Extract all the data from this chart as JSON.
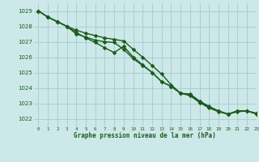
{
  "title": "Graphe pression niveau de la mer (hPa)",
  "background_color": "#cce8e8",
  "grid_color": "#aacfcf",
  "line_color": "#1a5c1a",
  "xlim": [
    -0.5,
    23
  ],
  "ylim": [
    1021.5,
    1029.5
  ],
  "yticks": [
    1022,
    1023,
    1024,
    1025,
    1026,
    1027,
    1028,
    1029
  ],
  "xticks": [
    0,
    1,
    2,
    3,
    4,
    5,
    6,
    7,
    8,
    9,
    10,
    11,
    12,
    13,
    14,
    15,
    16,
    17,
    18,
    19,
    20,
    21,
    22,
    23
  ],
  "line1_x": [
    0,
    1,
    2,
    3,
    4,
    5,
    6,
    7,
    8,
    9,
    10,
    11,
    12,
    13,
    14,
    15,
    16,
    17,
    18,
    19,
    20,
    21,
    22,
    23
  ],
  "line1_y": [
    1029.0,
    1028.6,
    1028.3,
    1028.0,
    1027.6,
    1027.25,
    1026.95,
    1026.6,
    1026.3,
    1026.7,
    1026.0,
    1025.5,
    1025.0,
    1024.4,
    1024.1,
    1023.65,
    1023.6,
    1023.15,
    1022.8,
    1022.5,
    1022.3,
    1022.5,
    1022.5,
    1022.3
  ],
  "line2_x": [
    0,
    1,
    2,
    3,
    4,
    5,
    6,
    7,
    8,
    9,
    10,
    11,
    12,
    13,
    14,
    15,
    16,
    17,
    18,
    19,
    20,
    21,
    22,
    23
  ],
  "line2_y": [
    1029.0,
    1028.6,
    1028.3,
    1028.0,
    1027.5,
    1027.3,
    1027.1,
    1027.0,
    1026.95,
    1026.5,
    1025.9,
    1025.45,
    1025.0,
    1024.4,
    1024.1,
    1023.65,
    1023.55,
    1023.1,
    1022.75,
    1022.5,
    1022.3,
    1022.5,
    1022.5,
    1022.35
  ],
  "line3_x": [
    0,
    1,
    2,
    3,
    4,
    5,
    6,
    7,
    8,
    9,
    10,
    11,
    12,
    13,
    14,
    15,
    16,
    17,
    18,
    19,
    20,
    21,
    22,
    23
  ],
  "line3_y": [
    1029.0,
    1028.6,
    1028.3,
    1028.0,
    1027.75,
    1027.55,
    1027.4,
    1027.25,
    1027.15,
    1027.05,
    1026.5,
    1026.0,
    1025.45,
    1024.9,
    1024.2,
    1023.65,
    1023.5,
    1023.05,
    1022.7,
    1022.45,
    1022.3,
    1022.45,
    1022.5,
    1022.35
  ]
}
